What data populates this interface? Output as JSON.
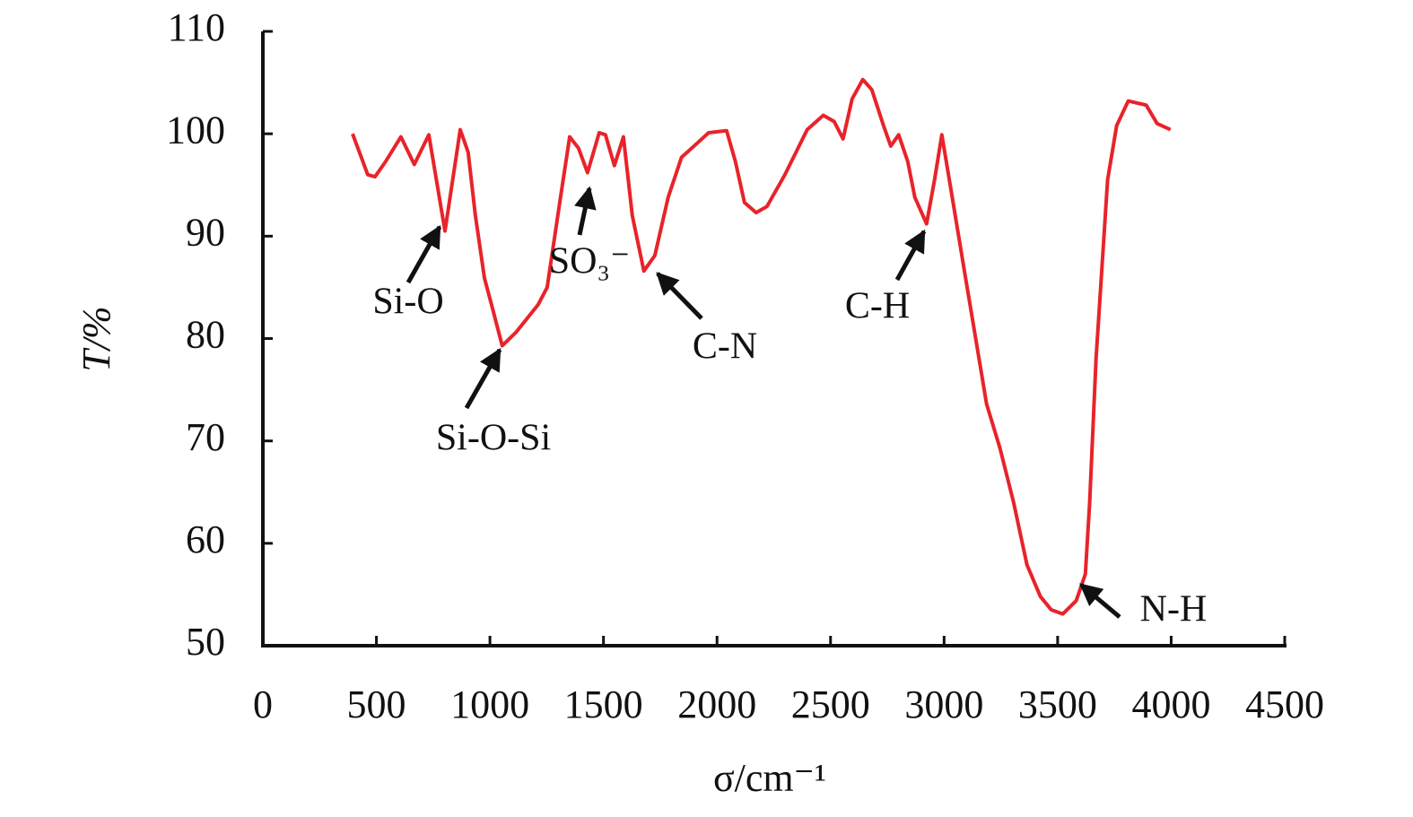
{
  "chart_data": {
    "type": "line",
    "xlabel": "σ/cm⁻¹",
    "ylabel": "T/%",
    "color": "#e8232a",
    "xlim": [
      0,
      4500
    ],
    "xticks": [
      0,
      500,
      1000,
      1500,
      2000,
      2500,
      3000,
      3500,
      4000,
      4500
    ],
    "ylim": [
      50,
      110
    ],
    "yticks": [
      50,
      60,
      70,
      80,
      90,
      100,
      110
    ],
    "x": [
      395,
      462,
      494,
      541,
      608,
      667,
      731,
      802,
      869,
      904,
      936,
      976,
      1007,
      1054,
      1114,
      1212,
      1252,
      1311,
      1351,
      1390,
      1430,
      1481,
      1509,
      1548,
      1588,
      1627,
      1678,
      1726,
      1785,
      1844,
      1904,
      1963,
      2042,
      2081,
      2121,
      2172,
      2220,
      2299,
      2397,
      2468,
      2516,
      2555,
      2595,
      2642,
      2682,
      2733,
      2765,
      2800,
      2840,
      2871,
      2923,
      2958,
      2990,
      3029,
      3088,
      3128,
      3187,
      3246,
      3306,
      3365,
      3424,
      3472,
      3523,
      3582,
      3622,
      3641,
      3669,
      3720,
      3760,
      3811,
      3851,
      3890,
      3938,
      3997
    ],
    "values": [
      100.0,
      96.0,
      95.8,
      97.3,
      99.7,
      97.0,
      99.9,
      90.5,
      100.4,
      98.2,
      92.0,
      85.9,
      83.3,
      79.3,
      80.6,
      83.3,
      85.0,
      93.8,
      99.7,
      98.6,
      96.2,
      100.1,
      99.9,
      96.9,
      99.7,
      92.0,
      86.6,
      88.1,
      93.8,
      97.7,
      98.9,
      100.1,
      100.3,
      97.3,
      93.3,
      92.3,
      92.9,
      96.0,
      100.4,
      101.8,
      101.2,
      99.5,
      103.4,
      105.3,
      104.3,
      100.8,
      98.8,
      99.9,
      97.3,
      93.8,
      91.2,
      95.5,
      99.9,
      94.7,
      86.8,
      81.5,
      73.6,
      69.3,
      64.0,
      57.9,
      54.8,
      53.5,
      53.1,
      54.4,
      57.0,
      64.0,
      78.0,
      95.5,
      100.8,
      103.2,
      103.0,
      102.8,
      101.0,
      100.4
    ],
    "annotations": [
      "Si-O",
      "Si-O-Si",
      "SO₃⁻",
      "C-N",
      "C-H",
      "N-H"
    ]
  }
}
